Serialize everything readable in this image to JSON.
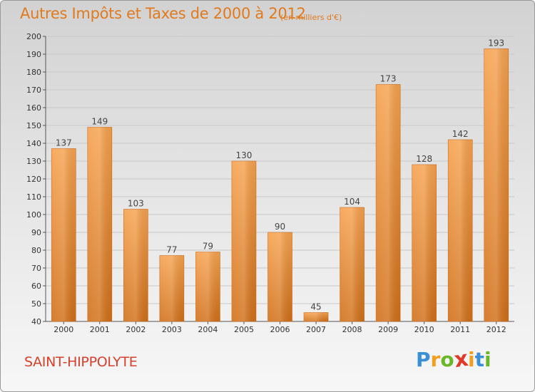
{
  "chart_data": {
    "type": "bar",
    "title": "Autres Impôts et Taxes de 2000 à 2012",
    "subtitle": "(en milliers d'€)",
    "categories": [
      "2000",
      "2001",
      "2002",
      "2003",
      "2004",
      "2005",
      "2006",
      "2007",
      "2008",
      "2009",
      "2010",
      "2011",
      "2012"
    ],
    "values": [
      137,
      149,
      103,
      77,
      79,
      130,
      90,
      45,
      104,
      173,
      128,
      142,
      193
    ],
    "ylim": [
      40,
      200
    ],
    "yticks": [
      40,
      50,
      60,
      70,
      80,
      90,
      100,
      110,
      120,
      130,
      140,
      150,
      160,
      170,
      180,
      190,
      200
    ],
    "grid": true,
    "bar_color": "#e8842c"
  },
  "footer": {
    "city": "SAINT-HIPPOLYTE",
    "logo": {
      "letters": [
        "P",
        "r",
        "o",
        "x",
        "i",
        "t",
        "i"
      ],
      "colors": [
        "#3a8fd6",
        "#f0a020",
        "#6ab82a",
        "#e03a2a",
        "#f0a020",
        "#3a8fd6",
        "#6ab82a"
      ]
    }
  }
}
